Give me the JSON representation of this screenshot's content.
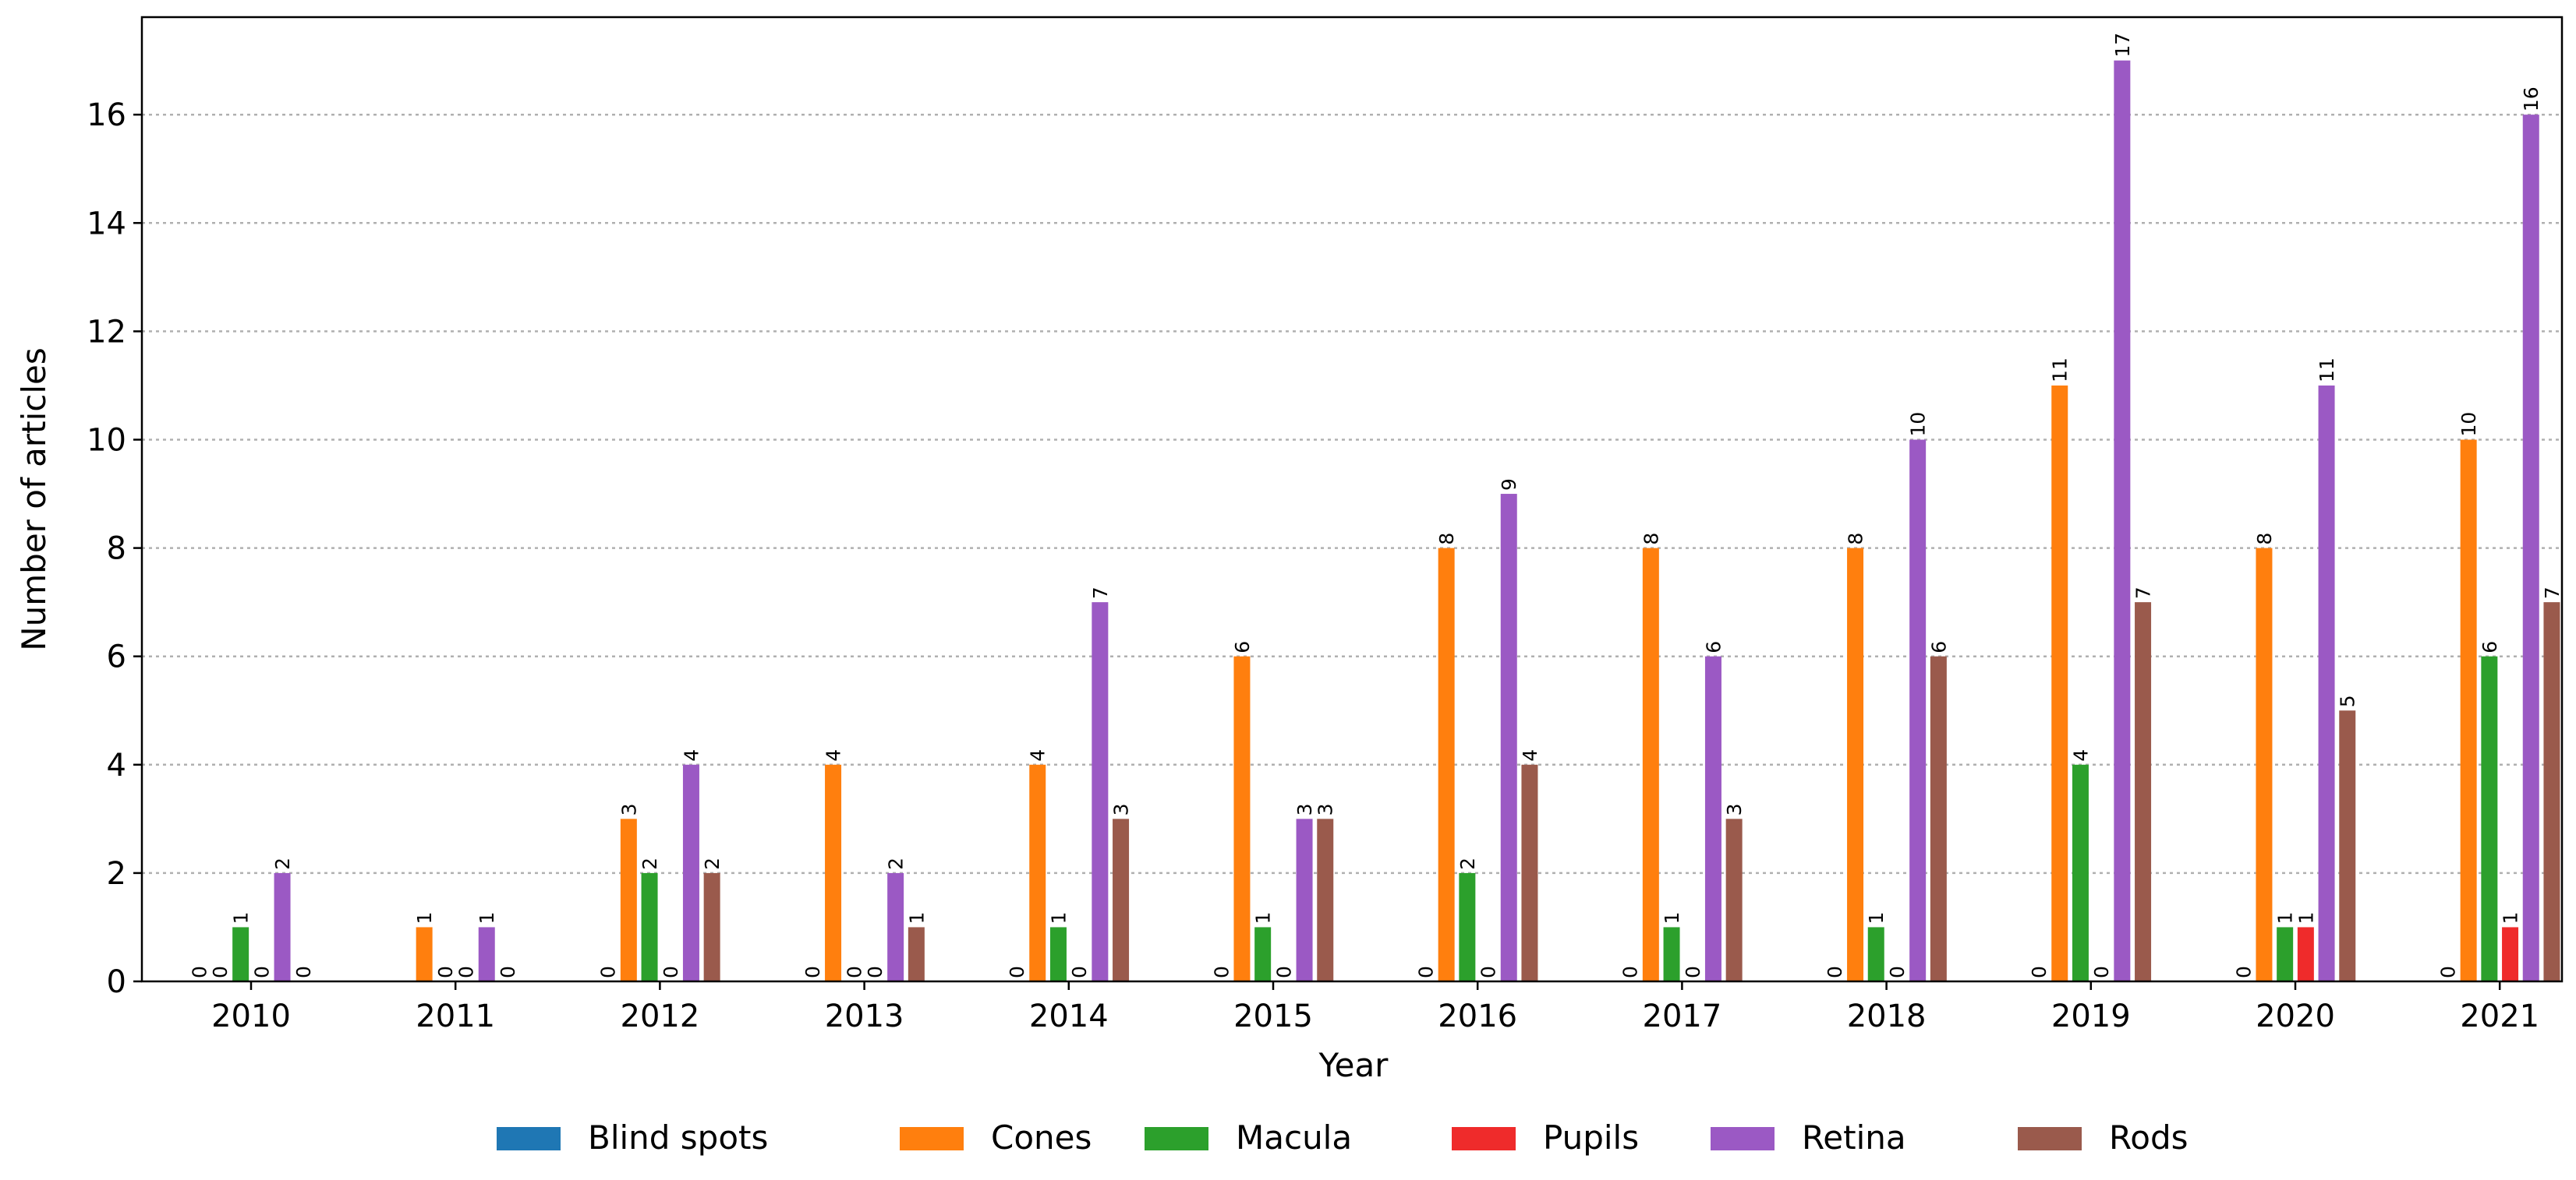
{
  "chart_data": {
    "type": "bar",
    "title": "",
    "xlabel": "Year",
    "ylabel": "Number of articles",
    "ylim": [
      0,
      17.8
    ],
    "yticks": [
      0,
      2,
      4,
      6,
      8,
      10,
      12,
      14,
      16
    ],
    "grid": "y-dotted",
    "legend_position": "bottom-center",
    "categories": [
      "2010",
      "2011",
      "2012",
      "2013",
      "2014",
      "2015",
      "2016",
      "2017",
      "2018",
      "2019",
      "2020",
      "2021"
    ],
    "series": [
      {
        "name": "Blind spots",
        "color": "#1f77b4",
        "values": [
          0,
          null,
          0,
          0,
          0,
          0,
          0,
          0,
          0,
          0,
          0,
          0
        ]
      },
      {
        "name": "Cones",
        "color": "#ff7f0e",
        "values": [
          0,
          1,
          3,
          4,
          4,
          6,
          8,
          8,
          8,
          11,
          8,
          10
        ]
      },
      {
        "name": "Macula",
        "color": "#2ca02c",
        "values": [
          1,
          0,
          2,
          0,
          1,
          1,
          2,
          1,
          1,
          4,
          1,
          6
        ]
      },
      {
        "name": "Pupils",
        "color": "#ef2b2b",
        "values": [
          0,
          0,
          0,
          0,
          0,
          0,
          0,
          0,
          0,
          0,
          1,
          1
        ]
      },
      {
        "name": "Retina",
        "color": "#9b59c4",
        "values": [
          2,
          1,
          4,
          2,
          7,
          3,
          9,
          6,
          10,
          17,
          11,
          16
        ]
      },
      {
        "name": "Rods",
        "color": "#9a5a4c",
        "values": [
          0,
          0,
          2,
          1,
          3,
          3,
          4,
          3,
          6,
          7,
          5,
          7
        ]
      }
    ]
  }
}
